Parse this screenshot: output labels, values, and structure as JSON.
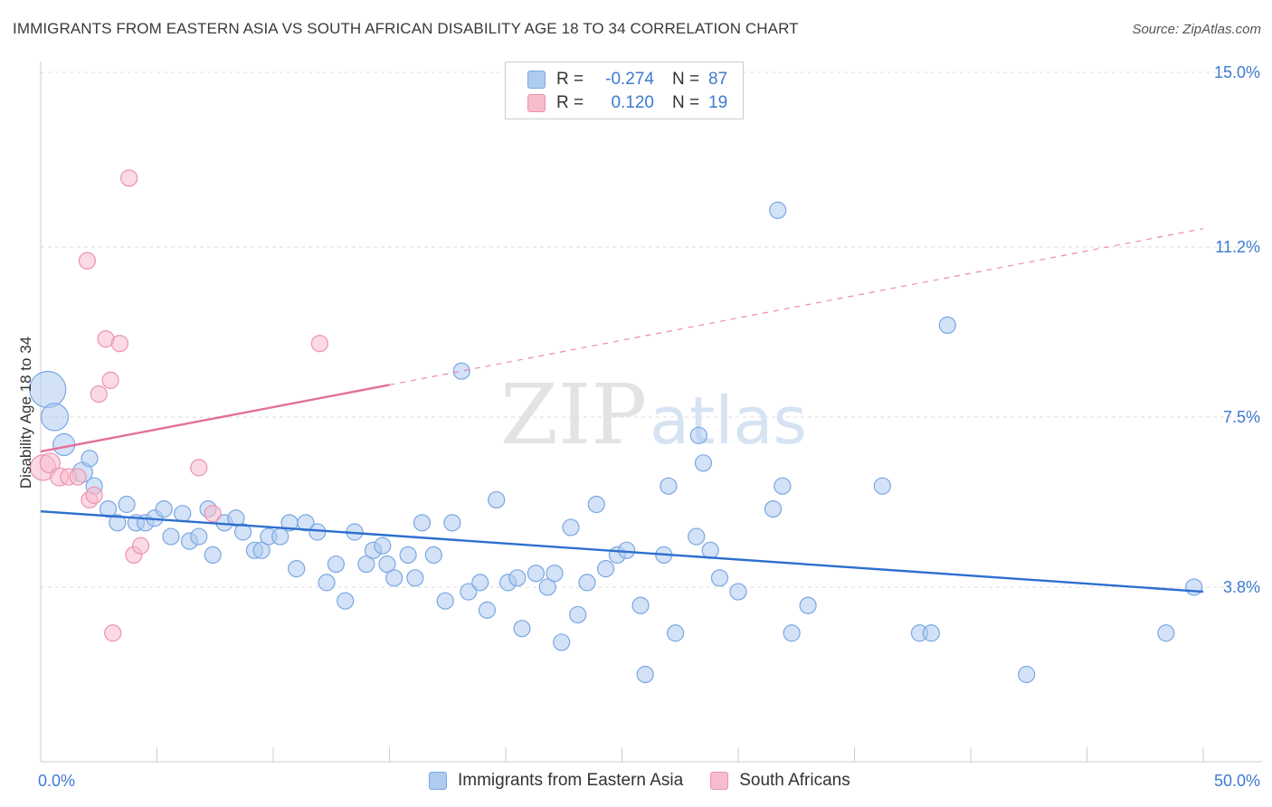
{
  "header": {
    "title": "IMMIGRANTS FROM EASTERN ASIA VS SOUTH AFRICAN DISABILITY AGE 18 TO 34 CORRELATION CHART",
    "source": "Source: ZipAtlas.com"
  },
  "watermark": {
    "zip": "ZIP",
    "atlas": "atlas"
  },
  "legend": {
    "r_label": "R =",
    "n_label": "N =",
    "series1": {
      "r": "-0.274",
      "n": "87"
    },
    "series2": {
      "r": "0.120",
      "n": "19"
    }
  },
  "colors": {
    "blue_fill": "#aecbf0",
    "blue_stroke": "#7aa7e3",
    "blue_line": "#2d6fce",
    "pink_fill": "#f7bccd",
    "pink_stroke": "#eb93ad",
    "pink_line": "#e3709a",
    "tick_label": "#3d7bd1",
    "grid": "#dddddd"
  },
  "chart_data": {
    "type": "scatter",
    "title": "IMMIGRANTS FROM EASTERN ASIA VS SOUTH AFRICAN DISABILITY AGE 18 TO 34 CORRELATION CHART",
    "xlabel": "",
    "ylabel": "Disability Age 18 to 34",
    "xlim": [
      0,
      50
    ],
    "ylim": [
      0,
      15.5
    ],
    "x_tick_labels": [
      "0.0%",
      "50.0%"
    ],
    "y_ticks": [
      3.8,
      7.5,
      11.2,
      15.0
    ],
    "y_tick_labels": [
      "3.8%",
      "7.5%",
      "11.2%",
      "15.0%"
    ],
    "legend_position": "top-center",
    "series": [
      {
        "name": "Immigrants from Eastern Asia",
        "color": "#aecbf0",
        "points": [
          {
            "x": 0.3,
            "y": 8.1,
            "r": 20
          },
          {
            "x": 0.6,
            "y": 7.5,
            "r": 15
          },
          {
            "x": 1.0,
            "y": 6.9,
            "r": 12
          },
          {
            "x": 1.8,
            "y": 6.3,
            "r": 11
          },
          {
            "x": 2.1,
            "y": 6.6,
            "r": 9
          },
          {
            "x": 2.3,
            "y": 6.0,
            "r": 9
          },
          {
            "x": 2.9,
            "y": 5.5,
            "r": 9
          },
          {
            "x": 3.3,
            "y": 5.2,
            "r": 9
          },
          {
            "x": 3.7,
            "y": 5.6,
            "r": 9
          },
          {
            "x": 4.1,
            "y": 5.2,
            "r": 9
          },
          {
            "x": 4.5,
            "y": 5.2,
            "r": 9
          },
          {
            "x": 4.9,
            "y": 5.3,
            "r": 9
          },
          {
            "x": 5.3,
            "y": 5.5,
            "r": 9
          },
          {
            "x": 5.6,
            "y": 4.9,
            "r": 9
          },
          {
            "x": 6.1,
            "y": 5.4,
            "r": 9
          },
          {
            "x": 6.4,
            "y": 4.8,
            "r": 9
          },
          {
            "x": 6.8,
            "y": 4.9,
            "r": 9
          },
          {
            "x": 7.2,
            "y": 5.5,
            "r": 9
          },
          {
            "x": 7.4,
            "y": 4.5,
            "r": 9
          },
          {
            "x": 7.9,
            "y": 5.2,
            "r": 9
          },
          {
            "x": 8.4,
            "y": 5.3,
            "r": 9
          },
          {
            "x": 8.7,
            "y": 5.0,
            "r": 9
          },
          {
            "x": 9.2,
            "y": 4.6,
            "r": 9
          },
          {
            "x": 9.5,
            "y": 4.6,
            "r": 9
          },
          {
            "x": 9.8,
            "y": 4.9,
            "r": 9
          },
          {
            "x": 10.3,
            "y": 4.9,
            "r": 9
          },
          {
            "x": 10.7,
            "y": 5.2,
            "r": 9
          },
          {
            "x": 11.0,
            "y": 4.2,
            "r": 9
          },
          {
            "x": 11.4,
            "y": 5.2,
            "r": 9
          },
          {
            "x": 11.9,
            "y": 5.0,
            "r": 9
          },
          {
            "x": 12.3,
            "y": 3.9,
            "r": 9
          },
          {
            "x": 12.7,
            "y": 4.3,
            "r": 9
          },
          {
            "x": 13.1,
            "y": 3.5,
            "r": 9
          },
          {
            "x": 13.5,
            "y": 5.0,
            "r": 9
          },
          {
            "x": 14.0,
            "y": 4.3,
            "r": 9
          },
          {
            "x": 14.3,
            "y": 4.6,
            "r": 9
          },
          {
            "x": 14.7,
            "y": 4.7,
            "r": 9
          },
          {
            "x": 14.9,
            "y": 4.3,
            "r": 9
          },
          {
            "x": 15.2,
            "y": 4.0,
            "r": 9
          },
          {
            "x": 15.8,
            "y": 4.5,
            "r": 9
          },
          {
            "x": 16.1,
            "y": 4.0,
            "r": 9
          },
          {
            "x": 16.4,
            "y": 5.2,
            "r": 9
          },
          {
            "x": 16.9,
            "y": 4.5,
            "r": 9
          },
          {
            "x": 17.4,
            "y": 3.5,
            "r": 9
          },
          {
            "x": 17.7,
            "y": 5.2,
            "r": 9
          },
          {
            "x": 18.1,
            "y": 8.5,
            "r": 9
          },
          {
            "x": 18.4,
            "y": 3.7,
            "r": 9
          },
          {
            "x": 18.9,
            "y": 3.9,
            "r": 9
          },
          {
            "x": 19.2,
            "y": 3.3,
            "r": 9
          },
          {
            "x": 19.6,
            "y": 5.7,
            "r": 9
          },
          {
            "x": 20.1,
            "y": 3.9,
            "r": 9
          },
          {
            "x": 20.5,
            "y": 4.0,
            "r": 9
          },
          {
            "x": 20.7,
            "y": 2.9,
            "r": 9
          },
          {
            "x": 21.3,
            "y": 4.1,
            "r": 9
          },
          {
            "x": 21.8,
            "y": 3.8,
            "r": 9
          },
          {
            "x": 22.1,
            "y": 4.1,
            "r": 9
          },
          {
            "x": 22.4,
            "y": 2.6,
            "r": 9
          },
          {
            "x": 22.8,
            "y": 5.1,
            "r": 9
          },
          {
            "x": 23.1,
            "y": 3.2,
            "r": 9
          },
          {
            "x": 23.5,
            "y": 3.9,
            "r": 9
          },
          {
            "x": 23.9,
            "y": 5.6,
            "r": 9
          },
          {
            "x": 24.3,
            "y": 4.2,
            "r": 9
          },
          {
            "x": 24.8,
            "y": 4.5,
            "r": 9
          },
          {
            "x": 25.2,
            "y": 4.6,
            "r": 9
          },
          {
            "x": 25.8,
            "y": 3.4,
            "r": 9
          },
          {
            "x": 26.0,
            "y": 1.9,
            "r": 9
          },
          {
            "x": 27.0,
            "y": 6.0,
            "r": 9
          },
          {
            "x": 27.3,
            "y": 2.8,
            "r": 9
          },
          {
            "x": 28.2,
            "y": 4.9,
            "r": 9
          },
          {
            "x": 28.5,
            "y": 6.5,
            "r": 9
          },
          {
            "x": 28.8,
            "y": 4.6,
            "r": 9
          },
          {
            "x": 29.2,
            "y": 4.0,
            "r": 9
          },
          {
            "x": 30.0,
            "y": 3.7,
            "r": 9
          },
          {
            "x": 31.7,
            "y": 12.0,
            "r": 9
          },
          {
            "x": 31.9,
            "y": 6.0,
            "r": 9
          },
          {
            "x": 32.3,
            "y": 2.8,
            "r": 9
          },
          {
            "x": 33.0,
            "y": 3.4,
            "r": 9
          },
          {
            "x": 36.2,
            "y": 6.0,
            "r": 9
          },
          {
            "x": 37.8,
            "y": 2.8,
            "r": 9
          },
          {
            "x": 38.3,
            "y": 2.8,
            "r": 9
          },
          {
            "x": 39.0,
            "y": 9.5,
            "r": 9
          },
          {
            "x": 42.4,
            "y": 1.9,
            "r": 9
          },
          {
            "x": 48.4,
            "y": 2.8,
            "r": 9
          },
          {
            "x": 49.6,
            "y": 3.8,
            "r": 9
          },
          {
            "x": 28.3,
            "y": 7.1,
            "r": 9
          },
          {
            "x": 26.8,
            "y": 4.5,
            "r": 9
          },
          {
            "x": 31.5,
            "y": 5.5,
            "r": 9
          }
        ]
      },
      {
        "name": "South Africans",
        "color": "#f7bccd",
        "points": [
          {
            "x": 0.1,
            "y": 6.4,
            "r": 14
          },
          {
            "x": 0.4,
            "y": 6.5,
            "r": 11
          },
          {
            "x": 0.8,
            "y": 6.2,
            "r": 10
          },
          {
            "x": 1.2,
            "y": 6.2,
            "r": 9
          },
          {
            "x": 1.6,
            "y": 6.2,
            "r": 9
          },
          {
            "x": 2.0,
            "y": 10.9,
            "r": 9
          },
          {
            "x": 2.1,
            "y": 5.7,
            "r": 9
          },
          {
            "x": 2.3,
            "y": 5.8,
            "r": 9
          },
          {
            "x": 2.5,
            "y": 8.0,
            "r": 9
          },
          {
            "x": 2.8,
            "y": 9.2,
            "r": 9
          },
          {
            "x": 3.0,
            "y": 8.3,
            "r": 9
          },
          {
            "x": 3.1,
            "y": 2.8,
            "r": 9
          },
          {
            "x": 3.4,
            "y": 9.1,
            "r": 9
          },
          {
            "x": 3.8,
            "y": 12.7,
            "r": 9
          },
          {
            "x": 4.0,
            "y": 4.5,
            "r": 9
          },
          {
            "x": 4.3,
            "y": 4.7,
            "r": 9
          },
          {
            "x": 6.8,
            "y": 6.4,
            "r": 9
          },
          {
            "x": 7.4,
            "y": 5.4,
            "r": 9
          },
          {
            "x": 12.0,
            "y": 9.1,
            "r": 9
          }
        ]
      }
    ],
    "trend_lines": [
      {
        "series": "Immigrants from Eastern Asia",
        "x": [
          0,
          50
        ],
        "y": [
          5.45,
          3.7
        ],
        "dashed_extension": false
      },
      {
        "series": "South Africans",
        "x": [
          0,
          15
        ],
        "y": [
          6.75,
          8.2
        ],
        "dashed_extension_to_x": 50,
        "dashed_extension_y": 11.6
      }
    ]
  },
  "bottom_legend": {
    "series1_label": "Immigrants from Eastern Asia",
    "series2_label": "South Africans"
  }
}
